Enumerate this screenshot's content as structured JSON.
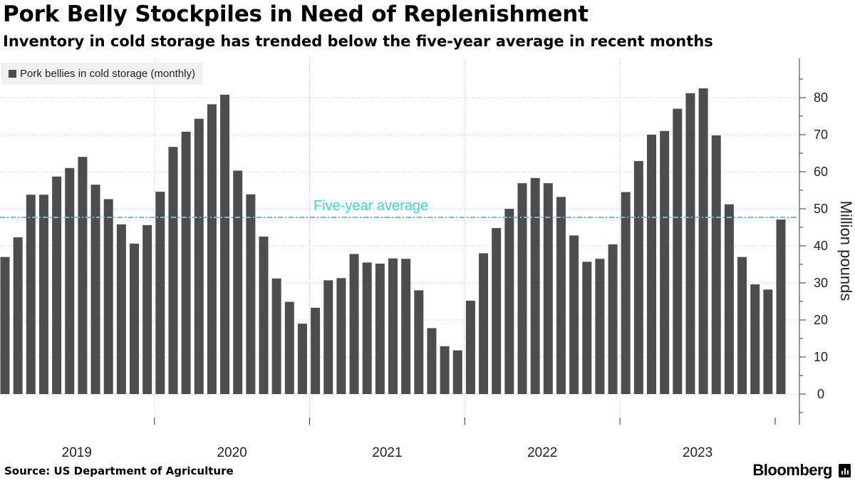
{
  "title": "Pork Belly Stockpiles in Need of Replenishment",
  "subtitle": "Inventory in cold storage has trended below the five-year average in recent months",
  "source": "Source: US Department of Agriculture",
  "brand": "Bloomberg",
  "colors": {
    "bar": "#4d4d4d",
    "average": "#3fd3df",
    "grid": "#c8c8c8",
    "legend_bg": "#f0f0f0"
  },
  "chart_data": {
    "type": "bar",
    "legend": "Pork bellies in cold storage (monthly)",
    "legend_position": "top-left",
    "ylabel": "Million pounds",
    "ylim": [
      -8,
      90
    ],
    "yticks": [
      0,
      10,
      20,
      30,
      40,
      50,
      60,
      70,
      80
    ],
    "x_start": "2019-01",
    "year_labels": [
      "2019",
      "2020",
      "2021",
      "2022",
      "2023"
    ],
    "values": [
      37,
      42.3,
      53.8,
      53.8,
      58.7,
      61,
      64,
      56.5,
      52.6,
      45.8,
      40.6,
      45.6,
      54.6,
      66.7,
      70.8,
      74.3,
      78.2,
      80.8,
      60.3,
      53.9,
      42.5,
      31.2,
      24.9,
      19,
      23.3,
      30.7,
      31.3,
      37.8,
      35.5,
      35.2,
      36.6,
      36.5,
      28,
      17.8,
      12.9,
      11.8,
      25.2,
      38,
      44.8,
      50,
      56.9,
      58.3,
      56.9,
      53.2,
      42.8,
      35.7,
      36.5,
      40.4,
      54.5,
      62.9,
      70,
      71,
      77,
      81.2,
      82.5,
      69.8,
      51.2,
      37,
      29.6,
      28.2,
      47.1
    ],
    "average": {
      "label": "Five-year average",
      "value": 47.7
    }
  }
}
